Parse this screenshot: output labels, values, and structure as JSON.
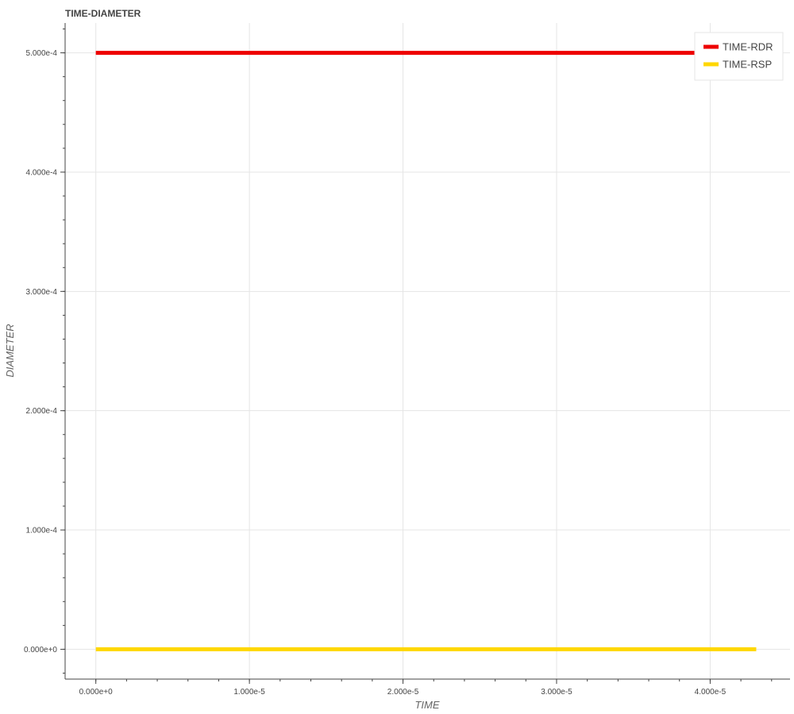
{
  "chart_data": {
    "type": "line",
    "title": "TIME-DIAMETER",
    "xlabel": "TIME",
    "ylabel": "DIAMETER",
    "xlim": [
      -2e-06,
      4.52e-05
    ],
    "ylim": [
      -2.5e-05,
      0.000525
    ],
    "x_ticks": [
      {
        "value": 0,
        "label": "0.000e+0"
      },
      {
        "value": 1e-05,
        "label": "1.000e-5"
      },
      {
        "value": 2e-05,
        "label": "2.000e-5"
      },
      {
        "value": 3e-05,
        "label": "3.000e-5"
      },
      {
        "value": 4e-05,
        "label": "4.000e-5"
      }
    ],
    "y_ticks": [
      {
        "value": 0,
        "label": "0.000e+0"
      },
      {
        "value": 0.0001,
        "label": "1.000e-4"
      },
      {
        "value": 0.0002,
        "label": "2.000e-4"
      },
      {
        "value": 0.0003,
        "label": "3.000e-4"
      },
      {
        "value": 0.0004,
        "label": "4.000e-4"
      },
      {
        "value": 0.0005,
        "label": "5.000e-4"
      }
    ],
    "series": [
      {
        "name": "TIME-RDR",
        "color": "#ee0000",
        "x": [
          0,
          4.3e-05
        ],
        "y": [
          0.0005,
          0.0005
        ]
      },
      {
        "name": "TIME-RSP",
        "color": "#ffd700",
        "x": [
          0,
          4.3e-05
        ],
        "y": [
          0,
          0
        ]
      }
    ],
    "grid": true,
    "legend_position": "top-right"
  }
}
